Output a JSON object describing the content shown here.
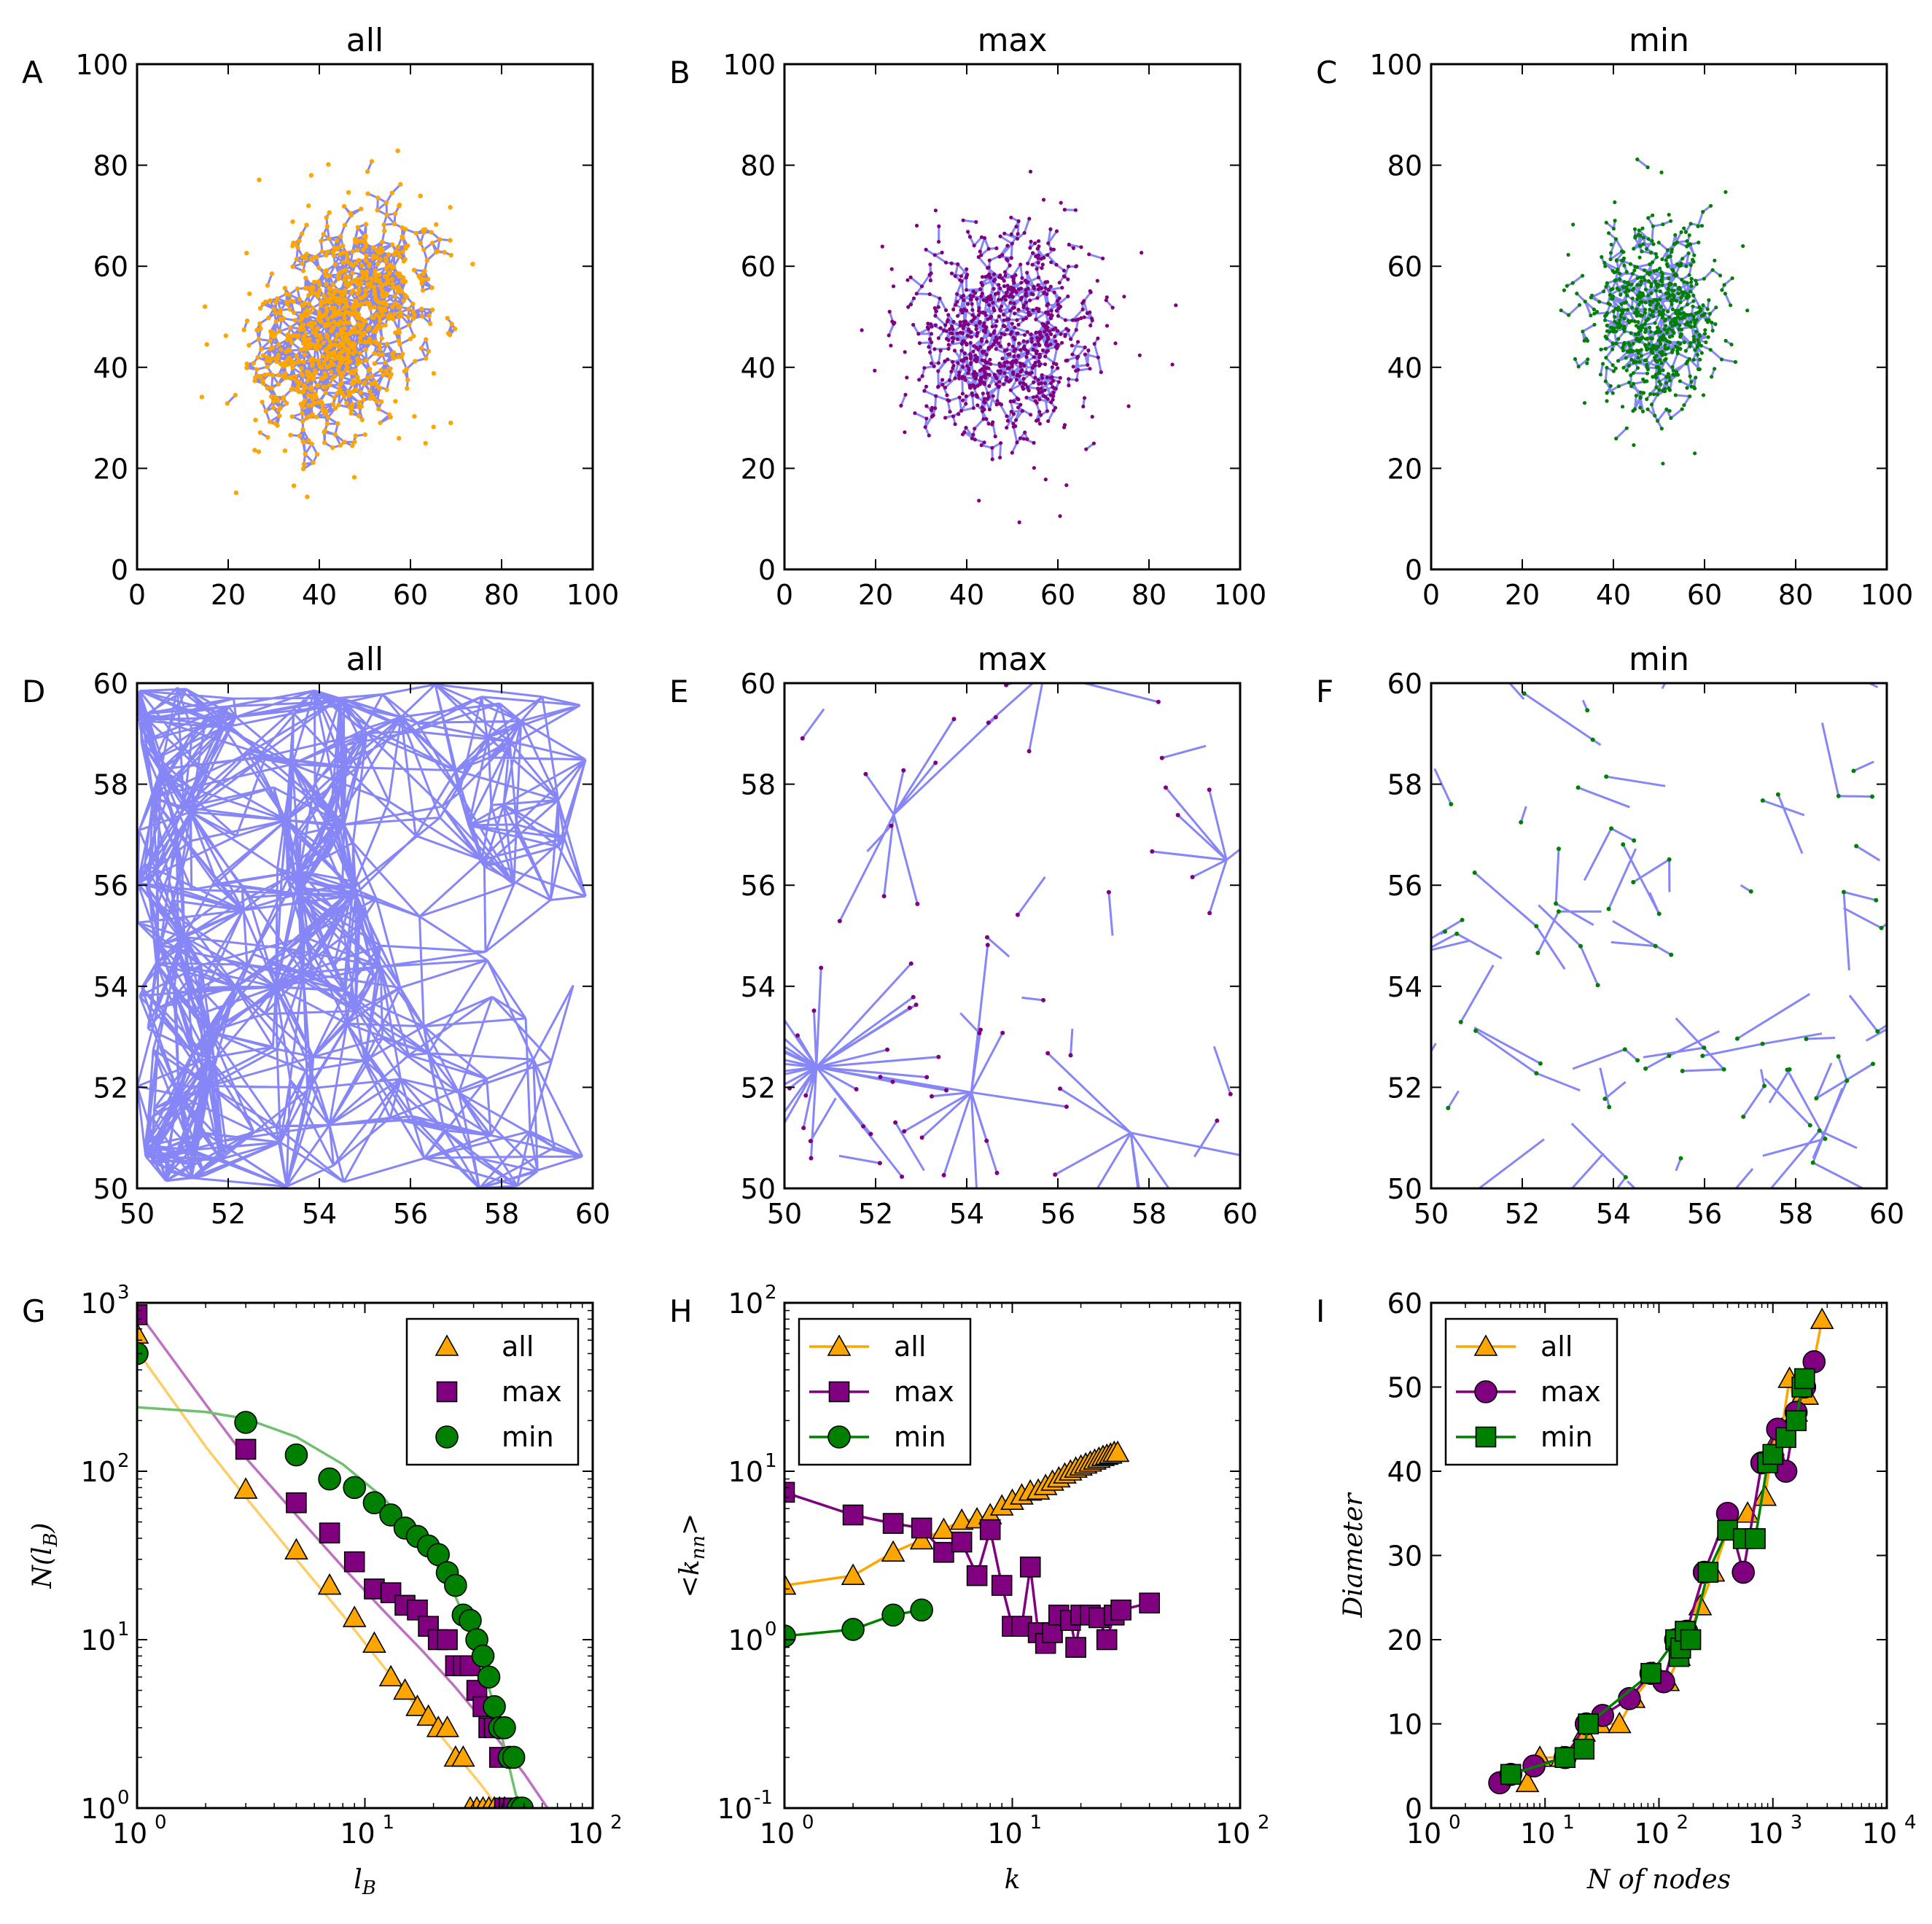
{
  "colors": {
    "all": "#ffa500",
    "max": "#800080",
    "min": "#008000",
    "edge": "#2323ee",
    "fit_all": "#ffcc66",
    "fit_max": "#c070c0",
    "fit_min": "#70c070"
  },
  "chart_data": [
    {
      "id": "A",
      "type": "network",
      "title": "all",
      "label": "A",
      "xlim": [
        0,
        100
      ],
      "ylim": [
        0,
        100
      ],
      "xticks": [
        "0",
        "20",
        "40",
        "60",
        "80",
        "100"
      ],
      "yticks": [
        "0",
        "20",
        "40",
        "60",
        "80",
        "100"
      ],
      "network": {
        "center": [
          45,
          48
        ],
        "spread": [
          9,
          11
        ],
        "nodes": 1000,
        "node_color": "#ffa500",
        "edge_color": "#2323ee",
        "style": "dense"
      }
    },
    {
      "id": "B",
      "type": "network",
      "title": "max",
      "label": "B",
      "xlim": [
        0,
        100
      ],
      "ylim": [
        0,
        100
      ],
      "xticks": [
        "0",
        "20",
        "40",
        "60",
        "80",
        "100"
      ],
      "yticks": [
        "0",
        "20",
        "40",
        "60",
        "80",
        "100"
      ],
      "network": {
        "center": [
          48,
          46
        ],
        "spread": [
          10,
          10
        ],
        "nodes": 900,
        "node_color": "#800080",
        "edge_color": "#2323ee",
        "style": "star"
      }
    },
    {
      "id": "C",
      "type": "network",
      "title": "min",
      "label": "C",
      "xlim": [
        0,
        100
      ],
      "ylim": [
        0,
        100
      ],
      "xticks": [
        "0",
        "20",
        "40",
        "60",
        "80",
        "100"
      ],
      "yticks": [
        "0",
        "20",
        "40",
        "60",
        "80",
        "100"
      ],
      "network": {
        "center": [
          49,
          50
        ],
        "spread": [
          7,
          9
        ],
        "nodes": 700,
        "node_color": "#008000",
        "edge_color": "#2323ee",
        "style": "chain"
      }
    },
    {
      "id": "D",
      "type": "network",
      "title": "all",
      "label": "D",
      "xlim": [
        50,
        60
      ],
      "ylim": [
        50,
        60
      ],
      "xticks": [
        "50",
        "52",
        "54",
        "56",
        "58",
        "60"
      ],
      "yticks": [
        "50",
        "52",
        "54",
        "56",
        "58",
        "60"
      ],
      "network": {
        "nodes": 230,
        "node_color": "#ffa500",
        "edge_color": "#2323ee",
        "style": "dense-zoom"
      }
    },
    {
      "id": "E",
      "type": "network",
      "title": "max",
      "label": "E",
      "xlim": [
        50,
        60
      ],
      "ylim": [
        50,
        60
      ],
      "xticks": [
        "50",
        "52",
        "54",
        "56",
        "58",
        "60"
      ],
      "yticks": [
        "50",
        "52",
        "54",
        "56",
        "58",
        "60"
      ],
      "network": {
        "node_color": "#800080",
        "edge_color": "#2323ee",
        "style": "hubs",
        "hubs": [
          [
            50.7,
            52.4,
            34
          ],
          [
            54.1,
            51.9,
            12
          ],
          [
            57.6,
            51.1,
            8
          ],
          [
            59.7,
            56.5,
            7
          ],
          [
            52.4,
            57.4,
            8
          ],
          [
            55.7,
            60.2,
            6
          ]
        ]
      }
    },
    {
      "id": "F",
      "type": "network",
      "title": "min",
      "label": "F",
      "xlim": [
        50,
        60
      ],
      "ylim": [
        50,
        60
      ],
      "xticks": [
        "50",
        "52",
        "54",
        "56",
        "58",
        "60"
      ],
      "yticks": [
        "50",
        "52",
        "54",
        "56",
        "58",
        "60"
      ],
      "network": {
        "segments": 60,
        "node_color": "#008000",
        "edge_color": "#2323ee",
        "style": "sparse"
      }
    },
    {
      "id": "G",
      "type": "scatter",
      "label": "G",
      "xscale": "log",
      "yscale": "log",
      "xlim": [
        1,
        100
      ],
      "ylim": [
        1,
        1000
      ],
      "xticks": [
        {
          "v": 1,
          "t": "10",
          "e": "0"
        },
        {
          "v": 10,
          "t": "10",
          "e": "1"
        },
        {
          "v": 100,
          "t": "10",
          "e": "2"
        }
      ],
      "yticks": [
        {
          "v": 1,
          "t": "10",
          "e": "0"
        },
        {
          "v": 10,
          "t": "10",
          "e": "1"
        },
        {
          "v": 100,
          "t": "10",
          "e": "2"
        },
        {
          "v": 1000,
          "t": "10",
          "e": "3"
        }
      ],
      "xlabel": "l",
      "xlabel_sub": "B",
      "ylabel": "N(l",
      "ylabel_sub": "B",
      "ylabel_end": ")",
      "legend": "top-right",
      "connect": false,
      "series": [
        {
          "name": "all",
          "marker": "triangle",
          "color": "#ffa500",
          "x": [
            1,
            3,
            5,
            7,
            9,
            11,
            13,
            15,
            17,
            19,
            21,
            23,
            25,
            27,
            29,
            31,
            33,
            35,
            37,
            39,
            41
          ],
          "y": [
            650,
            78,
            34,
            21,
            13.5,
            9.5,
            6,
            5,
            4,
            3.5,
            3,
            3,
            2,
            2,
            1,
            1,
            1,
            1,
            1,
            1,
            1
          ]
        },
        {
          "name": "max",
          "marker": "square",
          "color": "#800080",
          "x": [
            1,
            3,
            5,
            7,
            9,
            11,
            13,
            15,
            17,
            19,
            21,
            23,
            25,
            27,
            29,
            31,
            33,
            35,
            37,
            39,
            41,
            43,
            45
          ],
          "y": [
            850,
            135,
            65,
            43,
            29,
            20,
            19,
            16,
            15,
            12,
            10,
            10,
            7,
            7,
            7,
            5,
            4,
            3,
            3,
            2,
            1,
            1,
            1
          ]
        },
        {
          "name": "min",
          "marker": "circle",
          "color": "#008000",
          "x": [
            1,
            3,
            5,
            7,
            9,
            11,
            13,
            15,
            17,
            19,
            21,
            23,
            25,
            27,
            29,
            31,
            33,
            35,
            37,
            39,
            41,
            43,
            45,
            47,
            49
          ],
          "y": [
            500,
            195,
            125,
            90,
            80,
            65,
            55,
            46,
            41,
            36,
            32,
            25,
            21,
            14,
            13,
            10,
            8,
            6,
            4,
            3,
            3,
            2,
            2,
            1,
            1
          ]
        }
      ],
      "fits": [
        {
          "color": "#ffcc66",
          "x": [
            1,
            2,
            3,
            5,
            8,
            12,
            18,
            25,
            32,
            40
          ],
          "y": [
            520,
            140,
            70,
            30,
            14,
            7,
            3.6,
            2.1,
            1.4,
            0.95
          ]
        },
        {
          "color": "#c070c0",
          "x": [
            1,
            2,
            3,
            5,
            8,
            12,
            18,
            25,
            35,
            50,
            65
          ],
          "y": [
            900,
            250,
            120,
            55,
            27,
            15,
            8.5,
            5.2,
            3,
            1.6,
            0.95
          ]
        },
        {
          "color": "#70c070",
          "x": [
            1,
            2,
            3,
            5,
            8,
            12,
            18,
            25,
            32,
            38,
            42,
            46,
            50
          ],
          "y": [
            240,
            225,
            205,
            160,
            110,
            70,
            38,
            18,
            8,
            3.5,
            2,
            1.2,
            0.95
          ]
        }
      ]
    },
    {
      "id": "H",
      "type": "line",
      "label": "H",
      "xscale": "log",
      "yscale": "log",
      "xlim": [
        1,
        100
      ],
      "ylim": [
        0.1,
        100
      ],
      "xticks": [
        {
          "v": 1,
          "t": "10",
          "e": "0"
        },
        {
          "v": 10,
          "t": "10",
          "e": "1"
        },
        {
          "v": 100,
          "t": "10",
          "e": "2"
        }
      ],
      "yticks": [
        {
          "v": 0.1,
          "t": "10",
          "e": "-1"
        },
        {
          "v": 1,
          "t": "10",
          "e": "0"
        },
        {
          "v": 10,
          "t": "10",
          "e": "1"
        },
        {
          "v": 100,
          "t": "10",
          "e": "2"
        }
      ],
      "xlabel": "k",
      "ylabel": "<k",
      "ylabel_sub": "nn",
      "ylabel_end": ">",
      "legend": "top-left",
      "connect": true,
      "series": [
        {
          "name": "all",
          "marker": "triangle",
          "color": "#ffa500",
          "x": [
            1,
            2,
            3,
            4,
            5,
            6,
            7,
            8,
            9,
            10,
            11,
            12,
            13,
            14,
            15,
            16,
            17,
            18,
            19,
            20,
            21,
            22,
            23,
            24,
            25,
            26,
            27,
            28,
            29
          ],
          "y": [
            2.1,
            2.4,
            3.3,
            3.9,
            4.5,
            5.1,
            5.2,
            5.5,
            6.2,
            6.7,
            7.2,
            7.6,
            7.7,
            8.2,
            8.7,
            9.1,
            9.6,
            10,
            10.4,
            10.7,
            11,
            11.3,
            11.6,
            11.9,
            12.2,
            12.4,
            12.6,
            12.9,
            12.9
          ]
        },
        {
          "name": "max",
          "marker": "square",
          "color": "#800080",
          "x": [
            1,
            2,
            3,
            4,
            5,
            6,
            7,
            8,
            9,
            10,
            11,
            12,
            13,
            14,
            15,
            16,
            18,
            19,
            20,
            22,
            24,
            26,
            28,
            30,
            40
          ],
          "y": [
            7.5,
            5.5,
            4.9,
            4.6,
            3.3,
            3.8,
            2.4,
            4.5,
            2.1,
            1.2,
            1.2,
            2.7,
            1.1,
            0.95,
            1.1,
            1.4,
            1.3,
            0.9,
            1.4,
            1.4,
            1.35,
            1.0,
            1.4,
            1.5,
            1.65
          ]
        },
        {
          "name": "min",
          "marker": "circle",
          "color": "#008000",
          "x": [
            1,
            2,
            3,
            4
          ],
          "y": [
            1.05,
            1.15,
            1.4,
            1.5
          ]
        }
      ]
    },
    {
      "id": "I",
      "type": "line",
      "label": "I",
      "xscale": "log",
      "yscale": "linear",
      "xlim": [
        1,
        10000
      ],
      "ylim": [
        0,
        60
      ],
      "xticks": [
        {
          "v": 1,
          "t": "10",
          "e": "0"
        },
        {
          "v": 10,
          "t": "10",
          "e": "1"
        },
        {
          "v": 100,
          "t": "10",
          "e": "2"
        },
        {
          "v": 1000,
          "t": "10",
          "e": "3"
        },
        {
          "v": 10000,
          "t": "10",
          "e": "4"
        }
      ],
      "yticks": [
        {
          "v": 0,
          "t": "0"
        },
        {
          "v": 10,
          "t": "10"
        },
        {
          "v": 20,
          "t": "20"
        },
        {
          "v": 30,
          "t": "30"
        },
        {
          "v": 40,
          "t": "40"
        },
        {
          "v": 50,
          "t": "50"
        },
        {
          "v": 60,
          "t": "60"
        }
      ],
      "xlabel": "N of nodes",
      "ylabel": "Diameter",
      "legend": "top-left",
      "connect": true,
      "series": [
        {
          "name": "all",
          "marker": "triangle",
          "color": "#ffa500",
          "x": [
            7,
            9,
            14,
            22,
            30,
            45,
            60,
            90,
            120,
            150,
            175,
            230,
            300,
            400,
            600,
            850,
            1000,
            1200,
            1400,
            1600,
            1800,
            2000,
            2700
          ],
          "y": [
            3,
            6,
            6,
            9,
            10,
            10,
            13,
            16,
            15,
            18,
            20,
            24,
            28,
            33,
            35,
            37,
            43,
            45,
            51,
            47,
            49,
            49,
            58
          ]
        },
        {
          "name": "max",
          "marker": "circle",
          "color": "#800080",
          "x": [
            4,
            5,
            8,
            15,
            23,
            32,
            55,
            85,
            110,
            140,
            175,
            250,
            400,
            550,
            800,
            1100,
            1300,
            1600,
            1900,
            2300
          ],
          "y": [
            3,
            4,
            5,
            6,
            10,
            11,
            13,
            16,
            15,
            20,
            21,
            28,
            35,
            28,
            41,
            45,
            40,
            47,
            50,
            53
          ]
        },
        {
          "name": "min",
          "marker": "square",
          "color": "#008000",
          "x": [
            5,
            15,
            22,
            24,
            85,
            140,
            150,
            155,
            170,
            190,
            270,
            400,
            550,
            700,
            900,
            1000,
            1300,
            1600,
            1800,
            1900
          ],
          "y": [
            4,
            6,
            7,
            10,
            16,
            20,
            18,
            19,
            21,
            20,
            28,
            33,
            32,
            32,
            41,
            42,
            44,
            46,
            50,
            51
          ]
        }
      ]
    }
  ]
}
